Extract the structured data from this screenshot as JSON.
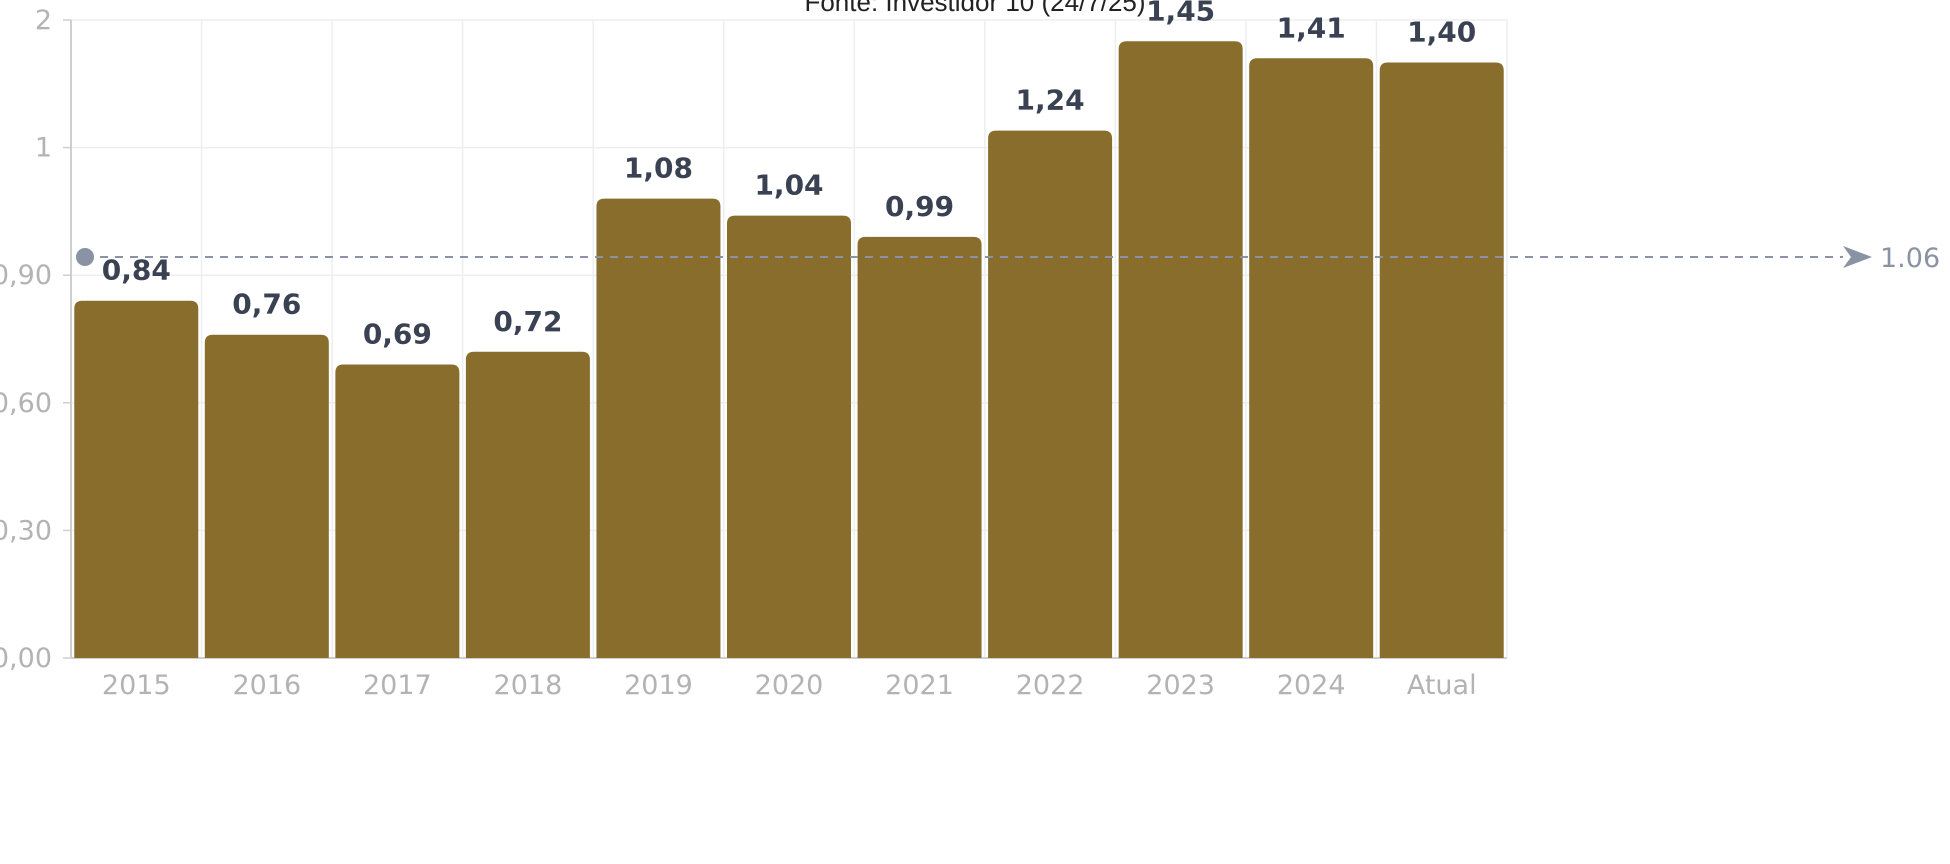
{
  "source_title": "Fonte: Investidor 10 (24/7/25)",
  "chart_data": {
    "type": "bar",
    "title": "",
    "xlabel": "",
    "ylabel": "",
    "categories": [
      "2015",
      "2016",
      "2017",
      "2018",
      "2019",
      "2020",
      "2021",
      "2022",
      "2023",
      "2024",
      "Atual"
    ],
    "values": [
      0.84,
      0.76,
      0.69,
      0.72,
      1.08,
      1.04,
      0.99,
      1.24,
      1.45,
      1.41,
      1.4
    ],
    "value_labels": [
      "0,84",
      "0,76",
      "0,69",
      "0,72",
      "1,08",
      "1,04",
      "0,99",
      "1,24",
      "1,45",
      "1,41",
      "1,40"
    ],
    "y_ticks": [
      {
        "value": 0.0,
        "label": "0,00"
      },
      {
        "value": 0.3,
        "label": "0,30"
      },
      {
        "value": 0.6,
        "label": "0,60"
      },
      {
        "value": 0.9,
        "label": "0,90"
      },
      {
        "value": 1.2,
        "label": "1"
      },
      {
        "value": 1.5,
        "label": "2"
      }
    ],
    "ylim": [
      0,
      1.5
    ],
    "grid": true,
    "average_line": {
      "value": 1.06,
      "label": "1.06"
    },
    "colors": {
      "bar": "#896d2d",
      "grid": "#eeeeee",
      "axis": "#cfcfcf",
      "average_line": "#8a93a3",
      "data_label": "#3a4152"
    }
  }
}
